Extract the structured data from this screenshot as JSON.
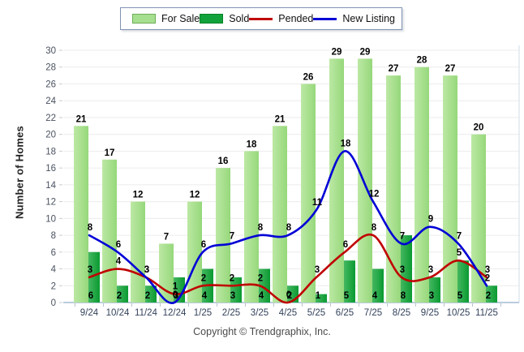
{
  "chart_data": {
    "type": "combo",
    "categories": [
      "9/24",
      "10/24",
      "11/24",
      "12/24",
      "1/25",
      "2/25",
      "3/25",
      "4/25",
      "5/25",
      "6/25",
      "7/25",
      "8/25",
      "9/25",
      "10/25",
      "11/25"
    ],
    "series": [
      {
        "name": "For Sale",
        "type": "bar",
        "color": "#a5df8f",
        "color_light": "#bce8a4",
        "color_dark": "#96d87b",
        "values": [
          21,
          17,
          12,
          7,
          12,
          16,
          18,
          21,
          26,
          29,
          29,
          27,
          28,
          27,
          20
        ]
      },
      {
        "name": "Sold",
        "type": "bar",
        "color": "#12a23b",
        "color_light": "#45b761",
        "color_dark": "#0a9a31",
        "values": [
          6,
          2,
          2,
          3,
          4,
          3,
          4,
          2,
          1,
          5,
          4,
          8,
          3,
          5,
          2
        ]
      },
      {
        "name": "Pended",
        "type": "line",
        "color": "#c00000",
        "values": [
          3,
          4,
          3,
          1,
          2,
          2,
          2,
          0,
          3,
          6,
          8,
          3,
          3,
          5,
          3
        ]
      },
      {
        "name": "New Listing",
        "type": "line",
        "color": "#0000d6",
        "values": [
          8,
          6,
          3,
          0,
          6,
          7,
          8,
          8,
          11,
          18,
          12,
          7,
          9,
          7,
          2
        ]
      }
    ],
    "title": "",
    "xlabel": "",
    "ylabel": "Number of Homes",
    "ylim": [
      0,
      30
    ],
    "yticks": [
      0,
      2,
      4,
      6,
      8,
      10,
      12,
      14,
      16,
      18,
      20,
      22,
      24,
      26,
      28,
      30
    ],
    "grid": true,
    "legend_position": "top-center",
    "data_labels": true
  },
  "footer": {
    "copyright": "Copyright © Trendgraphix, Inc."
  }
}
